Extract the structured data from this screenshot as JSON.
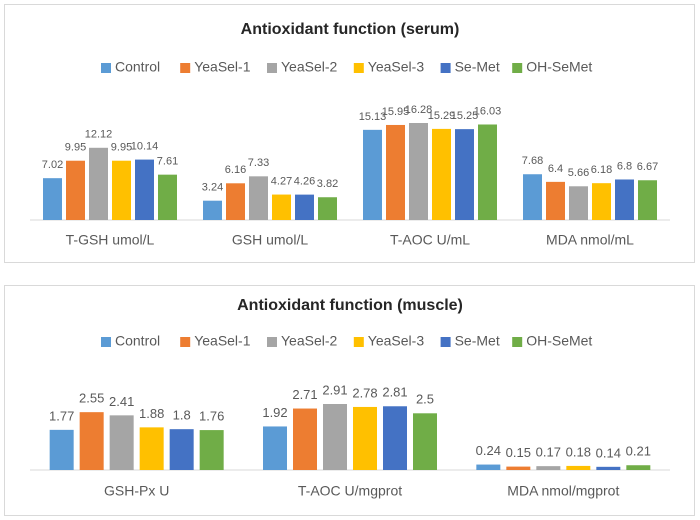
{
  "chart_data": [
    {
      "type": "bar",
      "title": "Antioxidant function (serum)",
      "categories": [
        "T-GSH umol/L",
        "GSH umol/L",
        "T-AOC U/mL",
        "MDA nmol/mL"
      ],
      "series": [
        {
          "name": "Control",
          "color": "#5b9bd5",
          "values": [
            7.02,
            3.24,
            15.13,
            7.68
          ]
        },
        {
          "name": "YeaSel-1",
          "color": "#ed7d31",
          "values": [
            9.95,
            6.16,
            15.95,
            6.4
          ]
        },
        {
          "name": "YeaSel-2",
          "color": "#a5a5a5",
          "values": [
            12.12,
            7.33,
            16.28,
            5.66
          ]
        },
        {
          "name": "YeaSel-3",
          "color": "#ffc000",
          "values": [
            9.95,
            4.27,
            15.29,
            6.18
          ]
        },
        {
          "name": "Se-Met",
          "color": "#4472c4",
          "values": [
            10.14,
            4.26,
            15.25,
            6.8
          ]
        },
        {
          "name": "OH-SeMet",
          "color": "#70ad47",
          "values": [
            7.61,
            3.82,
            16.03,
            6.67
          ]
        }
      ]
    },
    {
      "type": "bar",
      "title": "Antioxidant function (muscle)",
      "categories": [
        "GSH-Px U",
        "T-AOC U/mgprot",
        "MDA nmol/mgprot"
      ],
      "series": [
        {
          "name": "Control",
          "color": "#5b9bd5",
          "values": [
            1.77,
            1.92,
            0.24
          ]
        },
        {
          "name": "YeaSel-1",
          "color": "#ed7d31",
          "values": [
            2.55,
            2.71,
            0.15
          ]
        },
        {
          "name": "YeaSel-2",
          "color": "#a5a5a5",
          "values": [
            2.41,
            2.91,
            0.17
          ]
        },
        {
          "name": "YeaSel-3",
          "color": "#ffc000",
          "values": [
            1.88,
            2.78,
            0.18
          ]
        },
        {
          "name": "Se-Met",
          "color": "#4472c4",
          "values": [
            1.8,
            2.81,
            0.14
          ]
        },
        {
          "name": "OH-SeMet",
          "color": "#70ad47",
          "values": [
            1.76,
            2.5,
            0.21
          ]
        }
      ]
    }
  ]
}
